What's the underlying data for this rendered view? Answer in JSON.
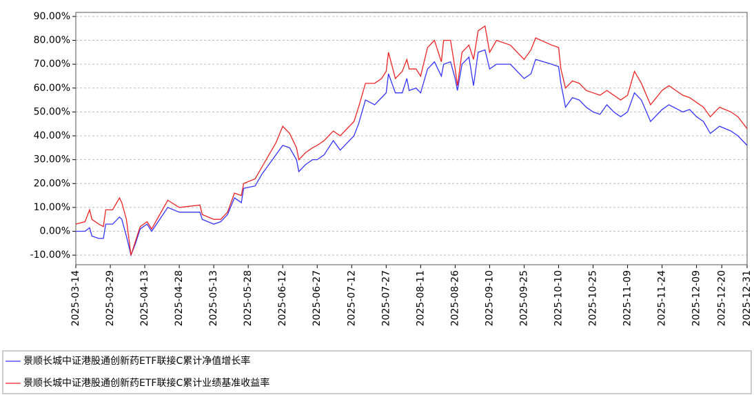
{
  "chart_data": {
    "type": "line",
    "x": [
      "2025-03-14",
      "2025-03-18",
      "2025-03-20",
      "2025-03-21",
      "2025-03-24",
      "2025-03-26",
      "2025-03-27",
      "2025-03-30",
      "2025-04-02",
      "2025-04-03",
      "2025-04-05",
      "2025-04-07",
      "2025-04-09",
      "2025-04-11",
      "2025-04-14",
      "2025-04-16",
      "2025-04-23",
      "2025-04-28",
      "2025-05-07",
      "2025-05-08",
      "2025-05-13",
      "2025-05-16",
      "2025-05-19",
      "2025-05-22",
      "2025-05-25",
      "2025-05-26",
      "2025-05-31",
      "2025-06-03",
      "2025-06-06",
      "2025-06-09",
      "2025-06-12",
      "2025-06-15",
      "2025-06-18",
      "2025-06-19",
      "2025-06-22",
      "2025-06-25",
      "2025-06-27",
      "2025-06-30",
      "2025-07-04",
      "2025-07-07",
      "2025-07-10",
      "2025-07-13",
      "2025-07-15",
      "2025-07-18",
      "2025-07-22",
      "2025-07-25",
      "2025-07-27",
      "2025-07-28",
      "2025-07-31",
      "2025-08-03",
      "2025-08-05",
      "2025-08-06",
      "2025-08-09",
      "2025-08-11",
      "2025-08-14",
      "2025-08-17",
      "2025-08-20",
      "2025-08-21",
      "2025-08-24",
      "2025-08-26",
      "2025-08-27",
      "2025-08-29",
      "2025-09-01",
      "2025-09-03",
      "2025-09-05",
      "2025-09-08",
      "2025-09-10",
      "2025-09-13",
      "2025-09-19",
      "2025-09-25",
      "2025-09-28",
      "2025-09-30",
      "2025-10-07",
      "2025-10-10",
      "2025-10-11",
      "2025-10-13",
      "2025-10-16",
      "2025-10-19",
      "2025-10-22",
      "2025-10-25",
      "2025-10-28",
      "2025-10-31",
      "2025-11-03",
      "2025-11-06",
      "2025-11-09",
      "2025-11-12",
      "2025-11-15",
      "2025-11-19",
      "2025-11-24",
      "2025-11-27",
      "2025-12-03",
      "2025-12-06",
      "2025-12-09",
      "2025-12-12",
      "2025-12-15",
      "2025-12-19",
      "2025-12-24",
      "2025-12-27",
      "2025-12-31"
    ],
    "series": [
      {
        "name": "景顺长城中证港股通创新药ETF联接C累计净值增长率",
        "color": "#3333ff",
        "values": [
          0,
          0,
          1.5,
          -2,
          -3,
          -3,
          3,
          3,
          6,
          5,
          -2,
          -10,
          -5,
          1,
          3,
          0,
          10,
          8,
          8,
          5,
          3,
          4,
          7,
          14,
          12,
          18,
          19,
          24,
          28,
          32,
          36,
          35,
          30,
          25,
          28,
          30,
          30,
          32,
          38,
          34,
          37,
          40,
          45,
          55,
          53,
          56,
          58,
          66,
          58,
          58,
          64,
          59,
          60,
          58,
          68,
          71,
          65,
          70,
          71,
          64,
          59,
          70,
          73,
          61,
          75,
          76,
          68,
          70,
          70,
          64,
          66,
          72,
          70,
          69,
          62,
          52,
          56,
          55,
          52,
          50,
          49,
          53,
          50,
          48,
          50,
          58,
          55,
          46,
          51,
          53,
          50,
          51,
          48,
          46,
          41,
          44,
          42,
          40,
          36
        ]
      },
      {
        "name": "景顺长城中证港股通创新药ETF联接C累计业绩基准收益率",
        "color": "#ee2222",
        "values": [
          3,
          4,
          9,
          5,
          3,
          2,
          9,
          9,
          14,
          12,
          5,
          -10,
          -4,
          2,
          4,
          1,
          13,
          10,
          11,
          7,
          5,
          5,
          8,
          16,
          15,
          20,
          22,
          27,
          32,
          37,
          44,
          41,
          35,
          30,
          33,
          35,
          36,
          38,
          42,
          40,
          43,
          46,
          52,
          62,
          62,
          64,
          67,
          75,
          64,
          67,
          72,
          68,
          68,
          65,
          77,
          80,
          71,
          80,
          80,
          68,
          61,
          75,
          78,
          72,
          84,
          86,
          75,
          80,
          78,
          72,
          76,
          81,
          78,
          77,
          68,
          60,
          63,
          62,
          59,
          58,
          57,
          59,
          57,
          55,
          57,
          67,
          62,
          53,
          59,
          61,
          57,
          56,
          54,
          52,
          48,
          52,
          50,
          48,
          43
        ]
      }
    ],
    "xlim": [
      "2025-03-14",
      "2025-12-31"
    ],
    "xticks": [
      "2025-03-14",
      "2025-03-29",
      "2025-04-13",
      "2025-04-28",
      "2025-05-13",
      "2025-05-28",
      "2025-06-12",
      "2025-06-27",
      "2025-07-12",
      "2025-07-27",
      "2025-08-11",
      "2025-08-26",
      "2025-09-10",
      "2025-09-25",
      "2025-10-10",
      "2025-10-25",
      "2025-11-09",
      "2025-11-24",
      "2025-12-09",
      "2025-12-20",
      "2025-12-31"
    ],
    "ylim": [
      -14,
      91.7
    ],
    "yticks": [
      {
        "value": 90,
        "label": "90.00%"
      },
      {
        "value": 80,
        "label": "80.00%"
      },
      {
        "value": 70,
        "label": "70.00%"
      },
      {
        "value": 60,
        "label": "60.00%"
      },
      {
        "value": 50,
        "label": "50.00%"
      },
      {
        "value": 40,
        "label": "40.00%"
      },
      {
        "value": 30,
        "label": "30.00%"
      },
      {
        "value": 20,
        "label": "20.00%"
      },
      {
        "value": 10,
        "label": "10.00%"
      },
      {
        "value": 0,
        "label": "0.00%"
      },
      {
        "value": -10,
        "label": "-10.00%"
      }
    ],
    "grid": true
  }
}
